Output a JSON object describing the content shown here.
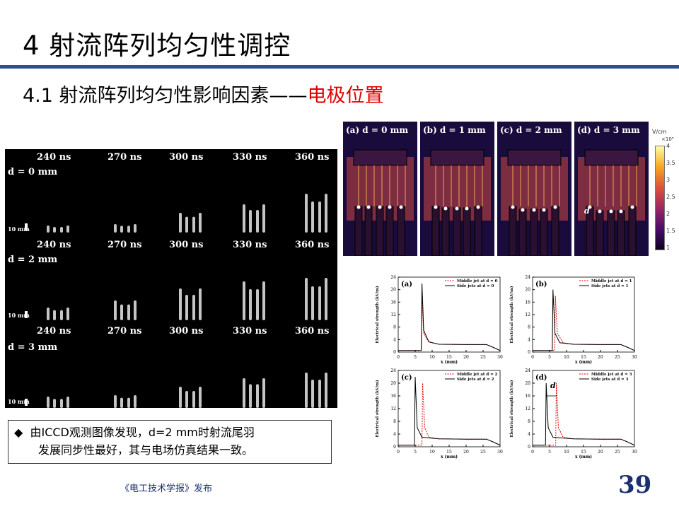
{
  "header": {
    "title": "4  射流阵列均匀性调控",
    "subtitle_main": "4.1  射流阵列均匀性影响因素——",
    "subtitle_highlight": "电极位置"
  },
  "iccd_figure": {
    "times": [
      "240 ns",
      "270 ns",
      "300 ns",
      "330 ns",
      "360 ns"
    ],
    "rows": [
      "d = 0 mm",
      "d = 2 mm",
      "d = 3 mm"
    ],
    "scale_label": "10 mm"
  },
  "sim_figure": {
    "panels": [
      "(a)  d = 0 mm",
      "(b)  d = 1 mm",
      "(c)  d = 2 mm",
      "(d)  d = 3 mm"
    ],
    "d_marker": "d",
    "colorbar_unit": "V/cm",
    "colorbar_exp": "×10⁵",
    "colorbar_ticks": [
      "4",
      "3.5",
      "3",
      "2.5",
      "2",
      "1.5",
      "1"
    ]
  },
  "chart_data": [
    {
      "type": "line",
      "panel": "(a)",
      "xlabel": "x (mm)",
      "ylabel": "Electrical strength (kV/m)",
      "xlim": [
        0,
        30
      ],
      "ylim": [
        0,
        24
      ],
      "xticks": [
        "0",
        "5",
        "10",
        "15",
        "20",
        "25",
        "30"
      ],
      "yticks": [
        "0",
        "4",
        "8",
        "12",
        "16",
        "20",
        "24"
      ],
      "series": [
        {
          "name": "Middle jet at d = 0",
          "color": "#e00000",
          "x": [
            0,
            6.8,
            7,
            7.5,
            9,
            12,
            20,
            26,
            28,
            30
          ],
          "y": [
            0.5,
            0.5,
            18,
            6,
            3.2,
            2.5,
            2.4,
            2.4,
            1.5,
            0.5
          ]
        },
        {
          "name": "Side jets at d = 0",
          "color": "#000000",
          "x": [
            0,
            6.8,
            7,
            7.5,
            9,
            12,
            20,
            26,
            28,
            30
          ],
          "y": [
            0.5,
            0.5,
            22,
            7,
            3.3,
            2.5,
            2.4,
            2.4,
            1.5,
            0.5
          ]
        }
      ]
    },
    {
      "type": "line",
      "panel": "(b)",
      "xlabel": "x (mm)",
      "ylabel": "Electrical strength (kV/m)",
      "xlim": [
        0,
        30
      ],
      "ylim": [
        0,
        24
      ],
      "xticks": [
        "0",
        "5",
        "10",
        "15",
        "20",
        "25",
        "30"
      ],
      "yticks": [
        "0",
        "4",
        "8",
        "12",
        "16",
        "20",
        "24"
      ],
      "series": [
        {
          "name": "Middle jet at d = 1",
          "color": "#e00000",
          "x": [
            0,
            6.5,
            6.7,
            7.3,
            9,
            12,
            20,
            26,
            28,
            30
          ],
          "y": [
            0.5,
            0.5,
            18,
            6,
            3,
            2.5,
            2.4,
            2.4,
            1.5,
            0.5
          ]
        },
        {
          "name": "Side jets at d = 1",
          "color": "#000000",
          "x": [
            0,
            5.8,
            6,
            6.6,
            8,
            12,
            20,
            26,
            28,
            30
          ],
          "y": [
            0.5,
            0.5,
            20,
            6,
            3,
            2.5,
            2.4,
            2.4,
            1.5,
            0.5
          ]
        }
      ]
    },
    {
      "type": "line",
      "panel": "(c)",
      "xlabel": "x (mm)",
      "ylabel": "Electrical strength (kV/m)",
      "xlim": [
        0,
        30
      ],
      "ylim": [
        0,
        24
      ],
      "xticks": [
        "0",
        "5",
        "10",
        "15",
        "20",
        "25",
        "30"
      ],
      "yticks": [
        "0",
        "4",
        "8",
        "12",
        "16",
        "20",
        "24"
      ],
      "series": [
        {
          "name": "Middle jet at d = 2",
          "color": "#e00000",
          "x": [
            0,
            7,
            7.2,
            7.8,
            9,
            12,
            20,
            26,
            28,
            30
          ],
          "y": [
            0.5,
            0.5,
            20,
            6,
            3,
            2.5,
            2.4,
            2.4,
            1.5,
            0.5
          ]
        },
        {
          "name": "Side jets at d = 2",
          "color": "#000000",
          "x": [
            0,
            4.8,
            5,
            5.6,
            7,
            12,
            20,
            26,
            28,
            30
          ],
          "y": [
            0.5,
            0.5,
            22,
            6,
            3,
            2.5,
            2.4,
            2.4,
            1.5,
            0.5
          ]
        }
      ]
    },
    {
      "type": "line",
      "panel": "(d)",
      "xlabel": "x (mm)",
      "ylabel": "Electrical strength (kV/m)",
      "xlim": [
        0,
        30
      ],
      "ylim": [
        0,
        24
      ],
      "xticks": [
        "0",
        "5",
        "10",
        "15",
        "20",
        "25",
        "30"
      ],
      "yticks": [
        "0",
        "4",
        "8",
        "12",
        "16",
        "20",
        "24"
      ],
      "annotation": "d",
      "series": [
        {
          "name": "Middle jet at d = 3",
          "color": "#e00000",
          "x": [
            0,
            6.8,
            7,
            7.6,
            9,
            12,
            20,
            26,
            28,
            30
          ],
          "y": [
            0.5,
            0.5,
            20,
            6,
            3,
            2.5,
            2.4,
            2.4,
            1.5,
            0.5
          ]
        },
        {
          "name": "Side jets at d = 3",
          "color": "#000000",
          "x": [
            0,
            3.8,
            4,
            4.6,
            6,
            12,
            20,
            26,
            28,
            30
          ],
          "y": [
            0.5,
            0.5,
            20,
            6,
            3,
            2.5,
            2.4,
            2.4,
            1.5,
            0.5
          ]
        }
      ]
    }
  ],
  "note": {
    "bullet": "◆",
    "line1": "由ICCD观测图像发现，d=2 mm时射流尾羽",
    "line2": "发展同步性最好，其与电场仿真结果一致。"
  },
  "footer": {
    "source": "《电工技术学报》发布",
    "page_number": "39"
  }
}
